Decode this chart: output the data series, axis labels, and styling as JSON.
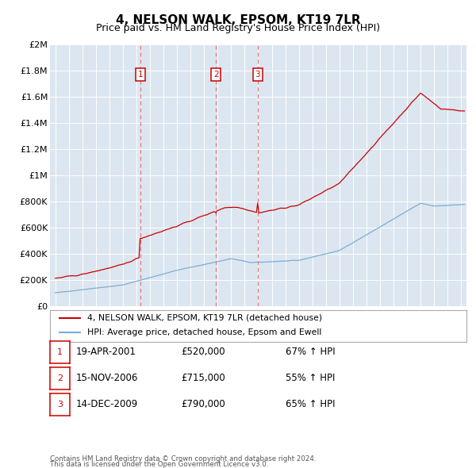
{
  "title": "4, NELSON WALK, EPSOM, KT19 7LR",
  "subtitle": "Price paid vs. HM Land Registry's House Price Index (HPI)",
  "plot_bg_color": "#dce6f0",
  "ylim": [
    0,
    2000000
  ],
  "yticks": [
    0,
    200000,
    400000,
    600000,
    800000,
    1000000,
    1200000,
    1400000,
    1600000,
    1800000,
    2000000
  ],
  "ytick_labels": [
    "£0",
    "£200K",
    "£400K",
    "£600K",
    "£800K",
    "£1M",
    "£1.2M",
    "£1.4M",
    "£1.6M",
    "£1.8M",
    "£2M"
  ],
  "xlim_start": 1994.6,
  "xlim_end": 2025.4,
  "purchases": [
    {
      "num": 1,
      "date": "19-APR-2001",
      "year": 2001.3,
      "price": "£520,000",
      "hpi_change": "67% ↑ HPI"
    },
    {
      "num": 2,
      "date": "15-NOV-2006",
      "year": 2006.88,
      "price": "£715,000",
      "hpi_change": "55% ↑ HPI"
    },
    {
      "num": 3,
      "date": "14-DEC-2009",
      "year": 2009.95,
      "price": "£790,000",
      "hpi_change": "65% ↑ HPI"
    }
  ],
  "legend_line1": "4, NELSON WALK, EPSOM, KT19 7LR (detached house)",
  "legend_line2": "HPI: Average price, detached house, Epsom and Ewell",
  "footnote1": "Contains HM Land Registry data © Crown copyright and database right 2024.",
  "footnote2": "This data is licensed under the Open Government Licence v3.0.",
  "red_line_color": "#cc0000",
  "blue_line_color": "#7aaed6",
  "marker_box_color": "#cc0000",
  "vline_color": "#e87070",
  "grid_color": "#ffffff",
  "title_fontsize": 11,
  "subtitle_fontsize": 9
}
